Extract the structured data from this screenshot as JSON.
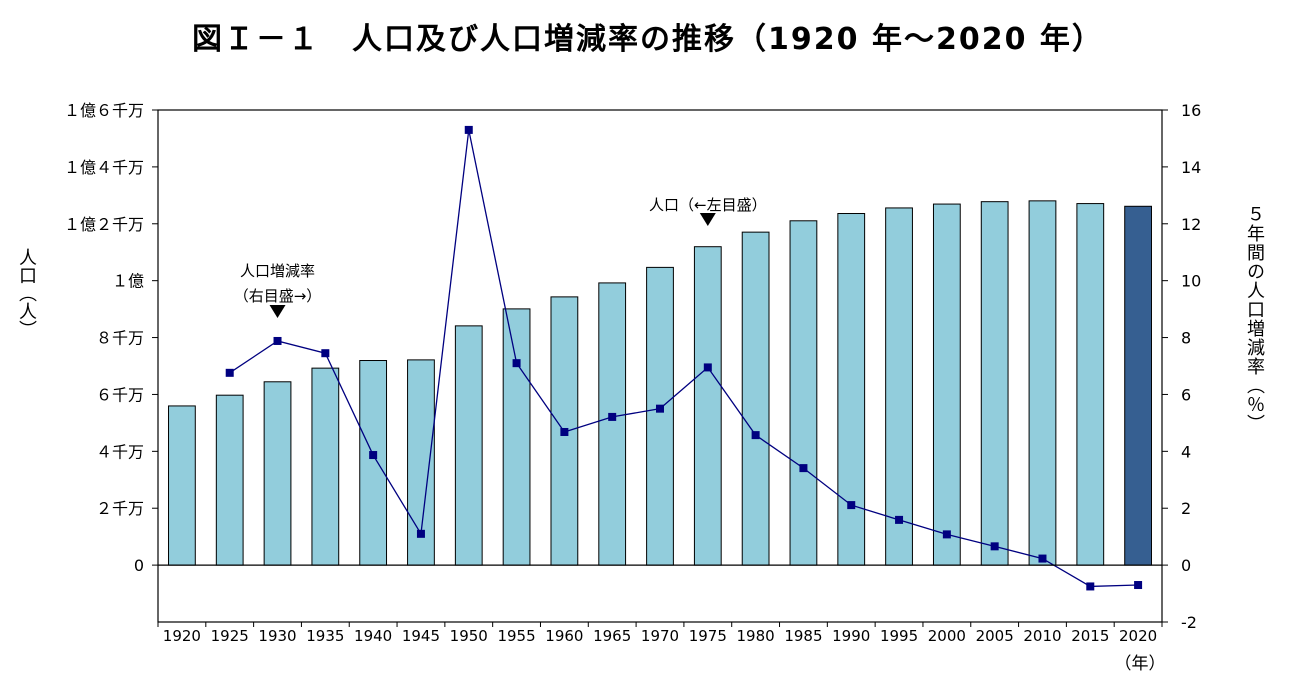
{
  "chart_data": {
    "type": "bar",
    "title": "図Ｉ－１　人口及び人口増減率の推移（1920 年～2020 年）",
    "categories": [
      "1920",
      "1925",
      "1930",
      "1935",
      "1940",
      "1945",
      "1950",
      "1955",
      "1960",
      "1965",
      "1970",
      "1975",
      "1980",
      "1985",
      "1990",
      "1995",
      "2000",
      "2005",
      "2010",
      "2015",
      "2020"
    ],
    "x_unit": "（年）",
    "ylabel_left": "人口（人）",
    "ylabel_right": "５年間の人口増減率（％）",
    "left_axis": {
      "ylim": [
        -20000000,
        160000000
      ],
      "ticks": [
        0,
        20000000,
        40000000,
        60000000,
        80000000,
        100000000,
        120000000,
        140000000,
        160000000
      ],
      "tick_labels": [
        "0",
        "２千万",
        "４千万",
        "６千万",
        "８千万",
        "１億",
        "１億２千万",
        "１億４千万",
        "１億６千万"
      ]
    },
    "right_axis": {
      "ylim": [
        -2,
        16
      ],
      "ticks": [
        -2,
        0,
        2,
        4,
        6,
        8,
        10,
        12,
        14,
        16
      ],
      "tick_labels": [
        "-2",
        "0",
        "2",
        "4",
        "6",
        "8",
        "10",
        "12",
        "14",
        "16"
      ]
    },
    "series": [
      {
        "name": "人口",
        "type": "bar",
        "axis": "left",
        "color": "#92CDDC",
        "highlight_color": "#365F91",
        "highlight_index": 20,
        "values": [
          55960000,
          59740000,
          64450000,
          69250000,
          71930000,
          72150000,
          84110000,
          90080000,
          94300000,
          99210000,
          104670000,
          111940000,
          117060000,
          121050000,
          123610000,
          125570000,
          126930000,
          127770000,
          128060000,
          127100000,
          126150000
        ]
      },
      {
        "name": "人口増減率",
        "type": "line",
        "axis": "right",
        "color": "#000080",
        "values": [
          null,
          6.76,
          7.88,
          7.45,
          3.87,
          1.1,
          15.3,
          7.1,
          4.68,
          5.21,
          5.5,
          6.95,
          4.57,
          3.41,
          2.11,
          1.59,
          1.08,
          0.66,
          0.23,
          -0.75,
          -0.7
        ]
      }
    ],
    "annotations": [
      {
        "line1": "人口増減率",
        "line2": "（右目盛→）",
        "category": "1930"
      },
      {
        "line1": "人口（←左目盛）",
        "line2": "",
        "category": "1975"
      }
    ],
    "legend": "none",
    "grid": false
  }
}
